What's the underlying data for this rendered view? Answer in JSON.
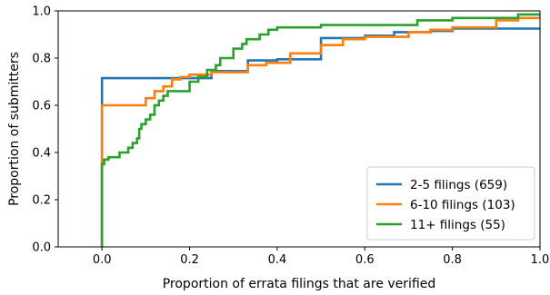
{
  "chart_data": {
    "type": "line",
    "step": true,
    "xlabel": "Proportion of errata filings that are verified",
    "ylabel": "Proportion of submitters",
    "xlim": [
      -0.1,
      1.0
    ],
    "ylim": [
      0.0,
      1.0
    ],
    "xticks": [
      "0.0",
      "0.2",
      "0.4",
      "0.6",
      "0.8",
      "1.0"
    ],
    "yticks": [
      "0.0",
      "0.2",
      "0.4",
      "0.6",
      "0.8",
      "1.0"
    ],
    "legend_position": "lower-right",
    "grid": false,
    "series": [
      {
        "name": "2-5 filings (659)",
        "color": "#1f77b4",
        "points": [
          [
            0.0,
            0.0
          ],
          [
            0.0,
            0.715
          ],
          [
            0.25,
            0.715
          ],
          [
            0.25,
            0.745
          ],
          [
            0.333,
            0.745
          ],
          [
            0.333,
            0.79
          ],
          [
            0.4,
            0.79
          ],
          [
            0.4,
            0.795
          ],
          [
            0.5,
            0.795
          ],
          [
            0.5,
            0.885
          ],
          [
            0.6,
            0.885
          ],
          [
            0.6,
            0.895
          ],
          [
            0.667,
            0.895
          ],
          [
            0.667,
            0.91
          ],
          [
            0.75,
            0.91
          ],
          [
            0.75,
            0.915
          ],
          [
            0.8,
            0.915
          ],
          [
            0.8,
            0.925
          ],
          [
            1.0,
            0.925
          ]
        ]
      },
      {
        "name": "6-10 filings (103)",
        "color": "#ff7f0e",
        "points": [
          [
            0.0,
            0.0
          ],
          [
            0.0,
            0.36
          ],
          [
            0.0,
            0.6
          ],
          [
            0.1,
            0.6
          ],
          [
            0.1,
            0.63
          ],
          [
            0.12,
            0.63
          ],
          [
            0.12,
            0.66
          ],
          [
            0.14,
            0.66
          ],
          [
            0.14,
            0.68
          ],
          [
            0.16,
            0.68
          ],
          [
            0.16,
            0.71
          ],
          [
            0.18,
            0.71
          ],
          [
            0.18,
            0.72
          ],
          [
            0.2,
            0.72
          ],
          [
            0.2,
            0.73
          ],
          [
            0.25,
            0.73
          ],
          [
            0.25,
            0.74
          ],
          [
            0.333,
            0.74
          ],
          [
            0.333,
            0.77
          ],
          [
            0.375,
            0.77
          ],
          [
            0.375,
            0.78
          ],
          [
            0.43,
            0.78
          ],
          [
            0.43,
            0.82
          ],
          [
            0.5,
            0.82
          ],
          [
            0.5,
            0.855
          ],
          [
            0.55,
            0.855
          ],
          [
            0.55,
            0.88
          ],
          [
            0.6,
            0.88
          ],
          [
            0.6,
            0.89
          ],
          [
            0.7,
            0.89
          ],
          [
            0.7,
            0.91
          ],
          [
            0.75,
            0.91
          ],
          [
            0.75,
            0.92
          ],
          [
            0.8,
            0.92
          ],
          [
            0.8,
            0.93
          ],
          [
            0.9,
            0.93
          ],
          [
            0.9,
            0.96
          ],
          [
            0.95,
            0.96
          ],
          [
            0.95,
            0.97
          ],
          [
            1.0,
            0.97
          ]
        ]
      },
      {
        "name": "11+ filings (55)",
        "color": "#2ca02c",
        "points": [
          [
            0.0,
            0.0
          ],
          [
            0.0,
            0.35
          ],
          [
            0.005,
            0.35
          ],
          [
            0.005,
            0.37
          ],
          [
            0.015,
            0.37
          ],
          [
            0.015,
            0.38
          ],
          [
            0.04,
            0.38
          ],
          [
            0.04,
            0.4
          ],
          [
            0.06,
            0.4
          ],
          [
            0.06,
            0.42
          ],
          [
            0.07,
            0.42
          ],
          [
            0.07,
            0.44
          ],
          [
            0.08,
            0.44
          ],
          [
            0.08,
            0.46
          ],
          [
            0.085,
            0.46
          ],
          [
            0.085,
            0.5
          ],
          [
            0.09,
            0.5
          ],
          [
            0.09,
            0.52
          ],
          [
            0.1,
            0.52
          ],
          [
            0.1,
            0.54
          ],
          [
            0.11,
            0.54
          ],
          [
            0.11,
            0.56
          ],
          [
            0.12,
            0.56
          ],
          [
            0.12,
            0.6
          ],
          [
            0.13,
            0.6
          ],
          [
            0.13,
            0.62
          ],
          [
            0.14,
            0.62
          ],
          [
            0.14,
            0.64
          ],
          [
            0.15,
            0.64
          ],
          [
            0.15,
            0.66
          ],
          [
            0.2,
            0.66
          ],
          [
            0.2,
            0.7
          ],
          [
            0.22,
            0.7
          ],
          [
            0.22,
            0.72
          ],
          [
            0.24,
            0.72
          ],
          [
            0.24,
            0.75
          ],
          [
            0.26,
            0.75
          ],
          [
            0.26,
            0.77
          ],
          [
            0.27,
            0.77
          ],
          [
            0.27,
            0.8
          ],
          [
            0.3,
            0.8
          ],
          [
            0.3,
            0.84
          ],
          [
            0.32,
            0.84
          ],
          [
            0.32,
            0.86
          ],
          [
            0.33,
            0.86
          ],
          [
            0.33,
            0.88
          ],
          [
            0.36,
            0.88
          ],
          [
            0.36,
            0.9
          ],
          [
            0.38,
            0.9
          ],
          [
            0.38,
            0.92
          ],
          [
            0.4,
            0.92
          ],
          [
            0.4,
            0.93
          ],
          [
            0.5,
            0.93
          ],
          [
            0.5,
            0.94
          ],
          [
            0.72,
            0.94
          ],
          [
            0.72,
            0.96
          ],
          [
            0.8,
            0.96
          ],
          [
            0.8,
            0.97
          ],
          [
            0.95,
            0.97
          ],
          [
            0.95,
            0.985
          ],
          [
            1.0,
            0.985
          ]
        ]
      }
    ]
  }
}
